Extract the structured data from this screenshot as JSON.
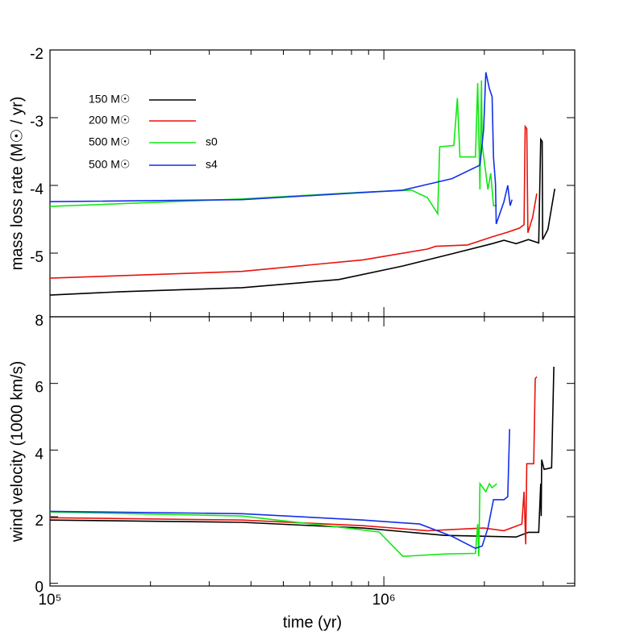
{
  "chart_data": [
    {
      "type": "line",
      "ylabel": "mass loss rate (M☉ / yr)",
      "xscale": "log",
      "xlim": [
        100000,
        3730000
      ],
      "ylim": [
        -5.94,
        -2
      ],
      "xticks": [
        100000,
        1000000
      ],
      "show_xtick_labels": false,
      "minor_xticks": [
        200000,
        300000,
        400000,
        500000,
        600000,
        700000,
        800000,
        900000,
        2000000,
        3000000
      ],
      "yticks": [
        -5,
        -4,
        -3,
        -2
      ],
      "series": [
        {
          "name": "150 M☉",
          "color": "#000000",
          "x": [
            100000,
            163000,
            376000,
            733000,
            1140000,
            1600000,
            2110000,
            2290000,
            2490000,
            2710000,
            2910000,
            2950000,
            2980000,
            2990000,
            3100000,
            3250000
          ],
          "values": [
            -5.62,
            -5.57,
            -5.51,
            -5.39,
            -5.19,
            -5.01,
            -4.86,
            -4.81,
            -4.86,
            -4.8,
            -4.85,
            -3.32,
            -3.35,
            -4.8,
            -4.65,
            -4.05
          ]
        },
        {
          "name": "200 M☉",
          "color": "#e8120c",
          "x": [
            100000,
            376000,
            866000,
            1350000,
            1430000,
            1780000,
            2110000,
            2350000,
            2550000,
            2630000,
            2650000,
            2680000,
            2700000,
            2790000,
            2870000
          ],
          "values": [
            -5.37,
            -5.27,
            -5.1,
            -4.94,
            -4.9,
            -4.88,
            -4.76,
            -4.69,
            -4.63,
            -4.58,
            -3.13,
            -3.16,
            -4.7,
            -4.47,
            -4.12
          ]
        },
        {
          "name": "500 M☉",
          "tag": "s0",
          "color": "#12e812",
          "x": [
            100000,
            376000,
            866000,
            1210000,
            1350000,
            1450000,
            1470000,
            1620000,
            1660000,
            1690000,
            1880000,
            1910000,
            1940000,
            1960000,
            1970000,
            2050000,
            2090000,
            2130000,
            2180000
          ],
          "values": [
            -4.31,
            -4.2,
            -4.1,
            -4.07,
            -4.18,
            -4.42,
            -3.43,
            -3.41,
            -2.71,
            -3.58,
            -3.58,
            -2.49,
            -4.06,
            -2.45,
            -3.4,
            -4.06,
            -3.82,
            -4.3,
            -4.3
          ]
        },
        {
          "name": "500 M☉",
          "tag": "s4",
          "color": "#1230e8",
          "x": [
            100000,
            376000,
            1140000,
            1600000,
            1940000,
            1990000,
            2020000,
            2070000,
            2110000,
            2130000,
            2160000,
            2170000,
            2290000,
            2350000,
            2390000,
            2420000
          ],
          "values": [
            -4.24,
            -4.21,
            -4.07,
            -3.9,
            -3.7,
            -3.17,
            -2.33,
            -2.57,
            -2.69,
            -3.58,
            -3.98,
            -4.57,
            -4.24,
            -4.0,
            -4.3,
            -4.21
          ]
        }
      ]
    },
    {
      "type": "line",
      "xlabel": "time (yr)",
      "ylabel": "wind velocity (1000 km/s)",
      "xscale": "log",
      "xlim": [
        100000,
        3730000
      ],
      "ylim": [
        -0.08,
        8
      ],
      "xticks": [
        {
          "value": 100000,
          "label": "10⁵"
        },
        {
          "value": 1000000,
          "label": "10⁶"
        }
      ],
      "show_xtick_labels": true,
      "minor_xticks": [
        200000,
        300000,
        400000,
        500000,
        600000,
        700000,
        800000,
        900000,
        2000000,
        3000000
      ],
      "yticks": [
        0,
        2,
        4,
        6,
        8
      ],
      "series": [
        {
          "color": "#000000",
          "x": [
            100000,
            376000,
            866000,
            1520000,
            2490000,
            2710000,
            2910000,
            2950000,
            2960000,
            2970000,
            3020000,
            3180000,
            3230000
          ],
          "values": [
            1.9,
            1.83,
            1.66,
            1.44,
            1.39,
            1.53,
            1.53,
            2.99,
            2.02,
            3.71,
            3.42,
            3.47,
            6.5
          ]
        },
        {
          "color": "#e8120c",
          "x": [
            100000,
            376000,
            866000,
            1350000,
            1990000,
            2290000,
            2590000,
            2630000,
            2660000,
            2680000,
            2810000,
            2840000,
            2870000
          ],
          "values": [
            1.97,
            1.9,
            1.73,
            1.58,
            1.66,
            1.58,
            1.78,
            2.75,
            1.17,
            3.59,
            3.59,
            6.14,
            6.2
          ]
        },
        {
          "color": "#12e812",
          "x": [
            100000,
            376000,
            774000,
            968000,
            1140000,
            1520000,
            1880000,
            1910000,
            1925000,
            1940000,
            2020000,
            2070000,
            2110000,
            2180000
          ],
          "values": [
            2.14,
            2.02,
            1.66,
            1.54,
            0.81,
            0.88,
            0.9,
            1.78,
            0.81,
            2.99,
            2.75,
            2.99,
            2.87,
            2.99
          ]
        },
        {
          "color": "#1230e8",
          "x": [
            100000,
            376000,
            866000,
            1280000,
            1600000,
            1880000,
            1970000,
            2050000,
            2130000,
            2160000,
            2290000,
            2350000,
            2380000
          ],
          "values": [
            2.16,
            2.09,
            1.9,
            1.78,
            1.41,
            1.05,
            1.12,
            1.66,
            2.51,
            2.51,
            2.51,
            2.6,
            4.63
          ]
        }
      ]
    }
  ]
}
